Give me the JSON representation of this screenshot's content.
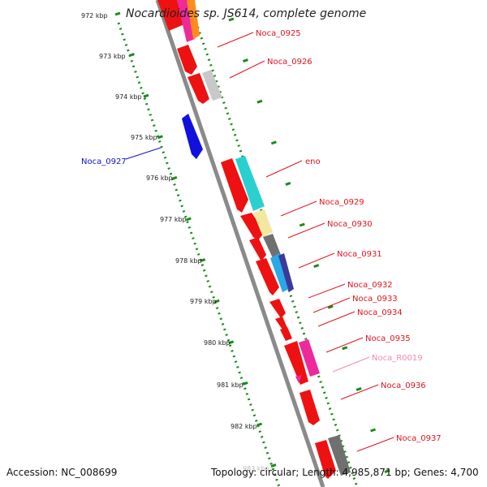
{
  "header": {
    "title": "Nocardioides sp. JS614, complete genome"
  },
  "footer": {
    "accession": "Accession: NC_008699",
    "summary": "Topology: circular; Length: 4,985,871 bp; Genes: 4,700"
  },
  "kbp_ticks": [
    {
      "label": "972 kbp"
    },
    {
      "label": "973 kbp"
    },
    {
      "label": "974 kbp"
    },
    {
      "label": "975 kbp"
    },
    {
      "label": "976 kbp"
    },
    {
      "label": "977 kbp"
    },
    {
      "label": "978 kbp"
    },
    {
      "label": "979 kbp"
    },
    {
      "label": "980 kbp"
    },
    {
      "label": "981 kbp"
    },
    {
      "label": "982 kbp"
    }
  ],
  "faded_tick": {
    "label": "983 kbp"
  },
  "gene_labels": [
    {
      "text": "Noca_0925",
      "color": "#e0141e"
    },
    {
      "text": "Noca_0926",
      "color": "#e0141e"
    },
    {
      "text": "Noca_0927",
      "color": "#1010cc"
    },
    {
      "text": "eno",
      "color": "#e0141e"
    },
    {
      "text": "Noca_0929",
      "color": "#e0141e"
    },
    {
      "text": "Noca_0930",
      "color": "#e0141e"
    },
    {
      "text": "Noca_0931",
      "color": "#e0141e"
    },
    {
      "text": "Noca_0932",
      "color": "#e0141e"
    },
    {
      "text": "Noca_0933",
      "color": "#e0141e"
    },
    {
      "text": "Noca_0934",
      "color": "#e0141e"
    },
    {
      "text": "Noca_0935",
      "color": "#e0141e"
    },
    {
      "text": "Noca_R0019",
      "color": "#f08ab4"
    },
    {
      "text": "Noca_0936",
      "color": "#e0141e"
    },
    {
      "text": "Noca_0937",
      "color": "#e0141e"
    }
  ],
  "colors": {
    "backbone": "#8a8a8a",
    "dotted_track": "#1a8a1a",
    "cds_red": "#ee1111",
    "cyan": "#2ad0d0",
    "pale_yellow": "#f2e8a0",
    "dark_gray": "#707070",
    "light_gray": "#c8c8c8",
    "magenta": "#ee2a9a",
    "orange": "#ff8c1a",
    "navy": "#3a3a9a",
    "sky_blue": "#2aa8e8",
    "blue": "#1111dd"
  }
}
